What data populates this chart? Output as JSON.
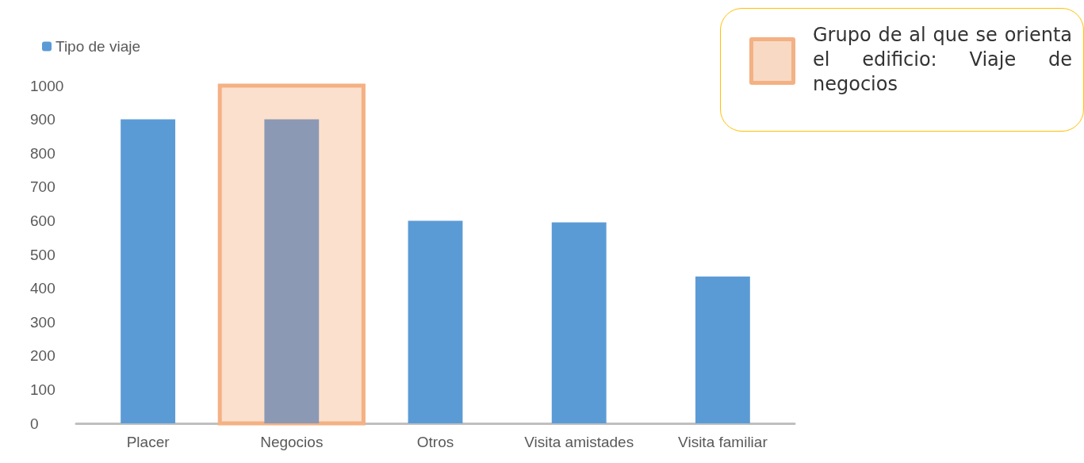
{
  "chart_data": {
    "type": "bar",
    "categories": [
      "Placer",
      "Negocios",
      "Otros",
      "Visita amistades",
      "Visita familiar"
    ],
    "series": [
      {
        "name": "Tipo de viaje",
        "color": "#5b9bd5",
        "colors": [
          "#5b9bd5",
          "#8c99b4",
          "#5b9bd5",
          "#5b9bd5",
          "#5b9bd5"
        ],
        "values": [
          900,
          900,
          600,
          595,
          435
        ]
      }
    ],
    "ylim": [
      0,
      1000
    ],
    "yticks": [
      0,
      100,
      200,
      300,
      400,
      500,
      600,
      700,
      800,
      900,
      1000
    ],
    "grid": false,
    "legend": "top",
    "bands": [
      {
        "axis": "x",
        "from": "Negocios",
        "to": "Negocios",
        "label": "Grupo de al que se orienta el edificio: Viaje de negocios",
        "color": "#f4b183"
      }
    ]
  }
}
